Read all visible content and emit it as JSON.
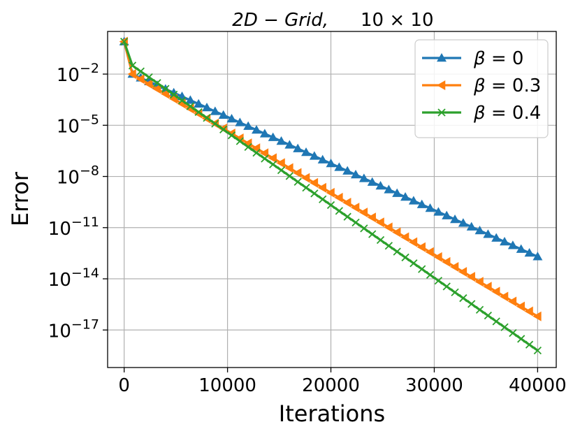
{
  "chart_data": {
    "type": "line",
    "title_math": "2D − Grid,",
    "title_size": "10 × 10",
    "xlabel": "Iterations",
    "ylabel": "Error",
    "xlim": [
      -1600,
      41800
    ],
    "ylim_log10": [
      -19.2,
      0.5
    ],
    "yscale": "log",
    "x_ticks": [
      0,
      10000,
      20000,
      30000,
      40000
    ],
    "x_tick_labels": [
      "0",
      "10000",
      "20000",
      "30000",
      "40000"
    ],
    "y_ticks_log10": [
      -2,
      -5,
      -8,
      -11,
      -14,
      -17
    ],
    "y_tick_base": "10",
    "y_tick_exponents": [
      "−2",
      "−5",
      "−8",
      "−11",
      "−14",
      "−17"
    ],
    "grid": true,
    "legend_position": "top-right",
    "legend_symbol": "β",
    "series": [
      {
        "name": "β = 0",
        "legend_value": "= 0",
        "color": "#1f77b4",
        "marker": "triangle-up",
        "x": [
          0,
          800,
          40000
        ],
        "log10_values": [
          -0.1,
          -2.0,
          -12.7
        ]
      },
      {
        "name": "β = 0.3",
        "legend_value": "= 0.3",
        "color": "#ff7f0e",
        "marker": "triangle-left",
        "x": [
          0,
          800,
          40000
        ],
        "log10_values": [
          -0.1,
          -2.0,
          -16.2
        ]
      },
      {
        "name": "β = 0.4",
        "legend_value": "= 0.4",
        "color": "#2ca02c",
        "marker": "x",
        "x": [
          0,
          800,
          40000
        ],
        "log10_values": [
          -0.1,
          -1.5,
          -18.2
        ]
      }
    ]
  }
}
